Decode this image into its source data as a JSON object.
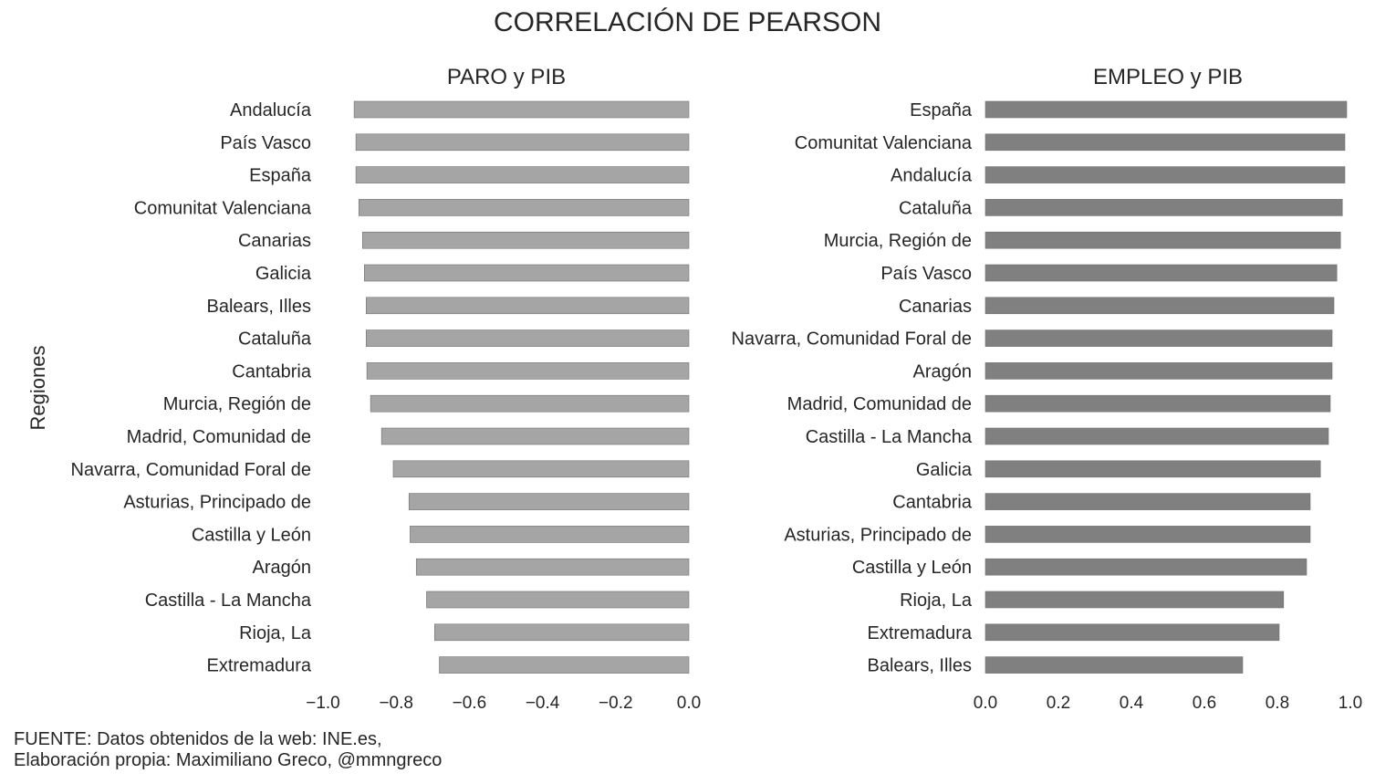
{
  "title": "CORRELACIÓN DE PEARSON",
  "source": {
    "line1": "FUENTE: Datos obtenidos de la web: INE.es,",
    "line2": "Elaboración propia: Maximiliano Greco, @mmngreco"
  },
  "colors": {
    "paro_bar": "#a5a5a5",
    "empleo_bar": "#808080",
    "bar_edge": "#6e6e6e",
    "text": "#262626"
  },
  "chart_data": [
    {
      "type": "bar",
      "orientation": "horizontal",
      "title": "PARO y PIB",
      "ylabel": "Regiones",
      "xlabel": "",
      "xlim": [
        -1.0,
        0.0
      ],
      "xticks": [
        "−1.0",
        "−0.8",
        "−0.6",
        "−0.4",
        "−0.2",
        "0.0"
      ],
      "xtick_values": [
        -1.0,
        -0.8,
        -0.6,
        -0.4,
        -0.2,
        0.0
      ],
      "grid": false,
      "categories": [
        "Andalucía",
        "País Vasco",
        "España",
        "Comunitat Valenciana",
        "Canarias",
        "Galicia",
        "Balears, Illes",
        "Cataluña",
        "Cantabria",
        "Murcia, Región de",
        "Madrid, Comunidad de",
        "Navarra, Comunidad Foral de",
        "Asturias, Principado de",
        "Castilla y León",
        "Aragón",
        "Castilla - La Mancha",
        "Rioja, La",
        "Extremadura"
      ],
      "values": [
        -0.915,
        -0.91,
        -0.91,
        -0.902,
        -0.892,
        -0.887,
        -0.882,
        -0.882,
        -0.88,
        -0.87,
        -0.84,
        -0.808,
        -0.765,
        -0.762,
        -0.745,
        -0.717,
        -0.695,
        -0.682
      ]
    },
    {
      "type": "bar",
      "orientation": "horizontal",
      "title": "EMPLEO y PIB",
      "ylabel": "",
      "xlabel": "",
      "xlim": [
        0.0,
        1.0
      ],
      "xticks": [
        "0.0",
        "0.2",
        "0.4",
        "0.6",
        "0.8",
        "1.0"
      ],
      "xtick_values": [
        0.0,
        0.2,
        0.4,
        0.6,
        0.8,
        1.0
      ],
      "grid": false,
      "categories": [
        "España",
        "Comunitat Valenciana",
        "Andalucía",
        "Cataluña",
        "Murcia, Región de",
        "País Vasco",
        "Canarias",
        "Navarra, Comunidad Foral de",
        "Aragón",
        "Madrid, Comunidad de",
        "Castilla - La Mancha",
        "Galicia",
        "Cantabria",
        "Asturias, Principado de",
        "Castilla y León",
        "Rioja, La",
        "Extremadura",
        "Balears, Illes"
      ],
      "values": [
        0.99,
        0.985,
        0.985,
        0.978,
        0.973,
        0.963,
        0.955,
        0.95,
        0.95,
        0.945,
        0.94,
        0.918,
        0.89,
        0.89,
        0.88,
        0.817,
        0.805,
        0.705
      ]
    }
  ]
}
